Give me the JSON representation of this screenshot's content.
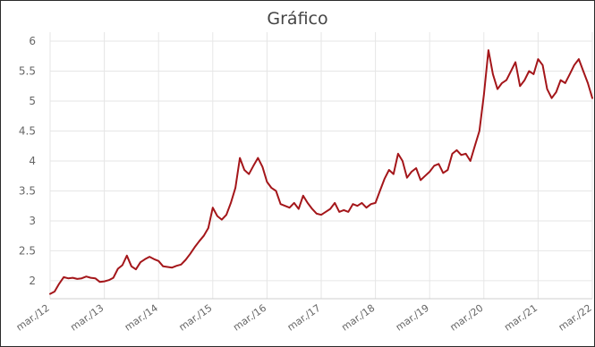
{
  "chart_data": {
    "type": "line",
    "title": "Gráfico",
    "xlabel": "",
    "ylabel": "",
    "ylim": [
      1.7,
      6.15
    ],
    "grid": true,
    "legend": "none",
    "line_color": "#a4161a",
    "y_ticks": [
      "2",
      "2.5",
      "3",
      "3.5",
      "4",
      "4.5",
      "5",
      "5.5",
      "6"
    ],
    "x_ticks": [
      "mar./12",
      "mar./13",
      "mar./14",
      "mar./15",
      "mar./16",
      "mar./17",
      "mar./18",
      "mar./19",
      "mar./20",
      "mar./21",
      "mar./22"
    ],
    "series": [
      {
        "x": [
          "2012-03",
          "2012-04",
          "2012-05",
          "2012-06",
          "2012-07",
          "2012-08",
          "2012-09",
          "2012-10",
          "2012-11",
          "2012-12",
          "2013-01",
          "2013-02",
          "2013-03",
          "2013-04",
          "2013-05",
          "2013-06",
          "2013-07",
          "2013-08",
          "2013-09",
          "2013-10",
          "2013-11",
          "2013-12",
          "2014-01",
          "2014-02",
          "2014-03",
          "2014-04",
          "2014-05",
          "2014-06",
          "2014-07",
          "2014-08",
          "2014-09",
          "2014-10",
          "2014-11",
          "2014-12",
          "2015-01",
          "2015-02",
          "2015-03",
          "2015-04",
          "2015-05",
          "2015-06",
          "2015-07",
          "2015-08",
          "2015-09",
          "2015-10",
          "2015-11",
          "2015-12",
          "2016-01",
          "2016-02",
          "2016-03",
          "2016-04",
          "2016-05",
          "2016-06",
          "2016-07",
          "2016-08",
          "2016-09",
          "2016-10",
          "2016-11",
          "2016-12",
          "2017-01",
          "2017-02",
          "2017-03",
          "2017-04",
          "2017-05",
          "2017-06",
          "2017-07",
          "2017-08",
          "2017-09",
          "2017-10",
          "2017-11",
          "2017-12",
          "2018-01",
          "2018-02",
          "2018-03",
          "2018-04",
          "2018-05",
          "2018-06",
          "2018-07",
          "2018-08",
          "2018-09",
          "2018-10",
          "2018-11",
          "2018-12",
          "2019-01",
          "2019-02",
          "2019-03",
          "2019-04",
          "2019-05",
          "2019-06",
          "2019-07",
          "2019-08",
          "2019-09",
          "2019-10",
          "2019-11",
          "2019-12",
          "2020-01",
          "2020-02",
          "2020-03",
          "2020-04",
          "2020-05",
          "2020-06",
          "2020-07",
          "2020-08",
          "2020-09",
          "2020-10",
          "2020-11",
          "2020-12",
          "2021-01",
          "2021-02",
          "2021-03",
          "2021-04",
          "2021-05",
          "2021-06",
          "2021-07",
          "2021-08",
          "2021-09",
          "2021-10",
          "2021-11",
          "2021-12",
          "2022-01",
          "2022-02",
          "2022-03"
        ],
        "y": [
          1.78,
          1.82,
          1.95,
          2.06,
          2.04,
          2.05,
          2.03,
          2.04,
          2.07,
          2.05,
          2.04,
          1.98,
          1.99,
          2.01,
          2.05,
          2.2,
          2.26,
          2.42,
          2.24,
          2.19,
          2.31,
          2.36,
          2.4,
          2.36,
          2.33,
          2.24,
          2.23,
          2.22,
          2.25,
          2.27,
          2.35,
          2.45,
          2.56,
          2.66,
          2.75,
          2.88,
          3.22,
          3.08,
          3.02,
          3.1,
          3.3,
          3.55,
          4.05,
          3.85,
          3.78,
          3.92,
          4.05,
          3.9,
          3.65,
          3.55,
          3.5,
          3.28,
          3.25,
          3.22,
          3.3,
          3.2,
          3.42,
          3.3,
          3.2,
          3.12,
          3.1,
          3.15,
          3.2,
          3.3,
          3.15,
          3.18,
          3.15,
          3.28,
          3.25,
          3.3,
          3.22,
          3.28,
          3.3,
          3.5,
          3.7,
          3.85,
          3.78,
          4.12,
          4.0,
          3.72,
          3.82,
          3.88,
          3.68,
          3.75,
          3.82,
          3.92,
          3.95,
          3.8,
          3.85,
          4.12,
          4.18,
          4.1,
          4.12,
          4.0,
          4.25,
          4.5,
          5.1,
          5.85,
          5.45,
          5.2,
          5.3,
          5.35,
          5.5,
          5.65,
          5.25,
          5.35,
          5.5,
          5.45,
          5.7,
          5.6,
          5.2,
          5.05,
          5.15,
          5.35,
          5.3,
          5.45,
          5.6,
          5.7,
          5.5,
          5.3,
          5.05
        ]
      }
    ]
  }
}
